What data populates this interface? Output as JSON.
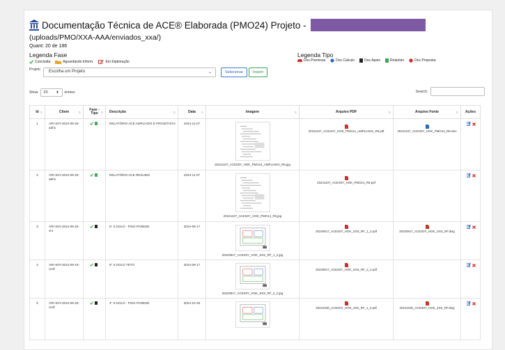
{
  "title": "Documentação Técnica de ACE® Elaborada (PMO24) Projeto -",
  "path": "(uploads/PMO/XXA-AAA/enviados_xxa/)",
  "quant": "Quant: 20 de 186",
  "legend_fase": {
    "title": "Legenda Fase",
    "items": [
      "Concluida",
      "Aguardando Inform.",
      "Em Elaboração"
    ]
  },
  "legend_tipo": {
    "title": "Legenda Tipo",
    "items": [
      "Doc.Premissa",
      "Doc.Calculo",
      "Doc.Apoio",
      "Relatório",
      "Doc.Proposta"
    ]
  },
  "project": {
    "label": "Projeto",
    "placeholder": "Escolha um Projeto",
    "select_button": "Selecionar",
    "insert_button": "Inserir"
  },
  "table_controls": {
    "show_label": "Show",
    "show_value": "20",
    "entries_label": "entries",
    "search_label": "Search:"
  },
  "columns": [
    "Id",
    "Citem",
    "Fase - Tipo",
    "Descrição",
    "Data",
    "Imagem",
    "Arquivo PDF",
    "Arquivo Fonte",
    "Ações"
  ],
  "rows": [
    {
      "id": "1",
      "citem": "ARI-S0Y-2024-09-20-aah1",
      "tipo": "Relatório",
      "descricao": "RELATÓRIO ACE AMPLIADO E PROJETISTA",
      "data": "2024-11-07",
      "imagem": "20241107_ACES0Y_HOK_PMO14_AMPLIADO_R9.jpg",
      "pdf": "20241107_ACES0Y_HOK_PMO14_AMPLIADO_R9.pdf",
      "fonte": "20241107_ACES0Y_HOK_PMO14_R9.xlsx",
      "fonte_type": "word"
    },
    {
      "id": "2",
      "citem": "ARI-S0Y-2024-09-20-a6h1",
      "tipo": "Relatório",
      "descricao": "RELATÓRIO ACE RESUMO",
      "data": "2024-11-07",
      "imagem": "20241107_ACES0Y_HOK_PMO14_R9.jpg",
      "pdf": "20241107_ACES0Y_HOK_PMO14_R9.pdf",
      "fonte": "",
      "fonte_type": "none"
    },
    {
      "id": "3",
      "citem": "ARI-S0Y-2024-09-20-vm",
      "tipo": "Doc.Apoio",
      "descricao": "5\" S.SOLO - PISO PAREDE",
      "data": "2024-09-17",
      "imagem": "20240917_ACES0Y_HOK_SSS_RF_1_2.jpg",
      "pdf": "20240917_ACES0Y_HOK_SSS_RF_1_2.pdf",
      "fonte": "20240917_ACES0Y_HOK_SSS_RF.dwg",
      "fonte_type": "red"
    },
    {
      "id": "4",
      "citem": "ARI-S0Y-2024-09-19-ce4f",
      "tipo": "Doc.Apoio",
      "descricao": "5\" S.SOLO TETO",
      "data": "2024-09-17",
      "imagem": "20240917_ACES0Y_HOK_SSS_RF_2_2.jpg",
      "pdf": "20240917_ACES0Y_HOK_SSS_RF_2_2.pdf",
      "fonte": "",
      "fonte_type": "none"
    },
    {
      "id": "5",
      "citem": "ARI-S0Y-2024-09-20-ce4f",
      "tipo": "Doc.Apoio",
      "descricao": "4\" S.SOLO - PISO PAREDE",
      "data": "2024-10-30",
      "imagem": "",
      "pdf": "20241030_ACES0Y_HOK_4SS_RF_1_2.pdf",
      "fonte": "20241030_ACES0Y_HOK_4SS_RF.dwg",
      "fonte_type": "red"
    }
  ],
  "colors": {
    "green": "#3aa657",
    "blue": "#2a66c2",
    "red": "#d62a2a",
    "purple": "#7e5aa5"
  }
}
